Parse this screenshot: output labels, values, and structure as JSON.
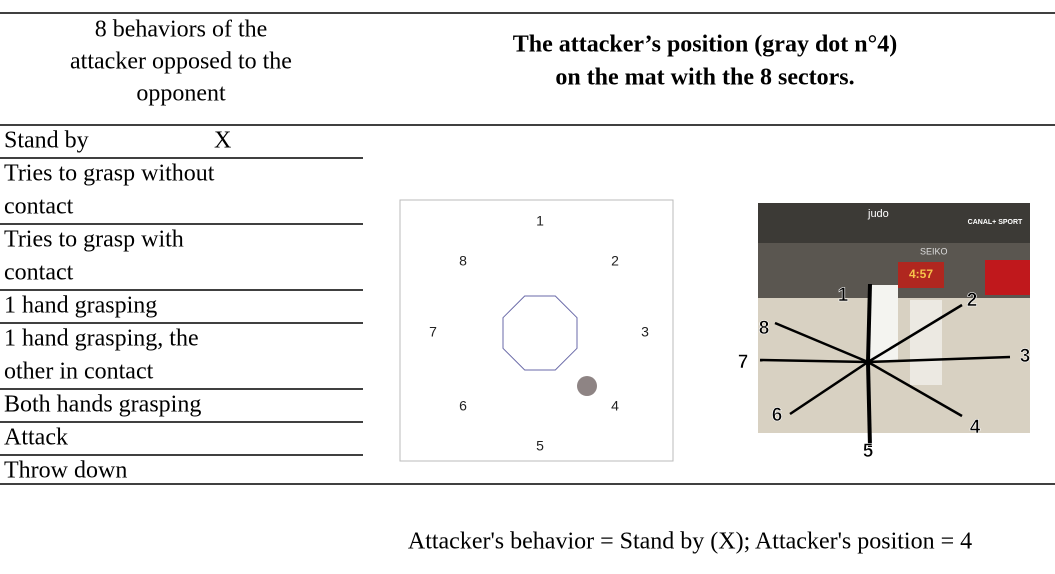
{
  "header": {
    "left": [
      "8 behaviors of the",
      "attacker opposed to the",
      "opponent"
    ],
    "right": [
      "The attacker’s position (gray dot n°4)",
      "on the mat with the 8 sectors."
    ]
  },
  "behaviors": [
    {
      "lines": [
        "Stand by"
      ],
      "mark": "X"
    },
    {
      "lines": [
        "Tries to grasp without",
        "contact"
      ]
    },
    {
      "lines": [
        "Tries to grasp with",
        "contact"
      ]
    },
    {
      "lines": [
        "1 hand grasping"
      ]
    },
    {
      "lines": [
        "1 hand grasping, the",
        "other in contact"
      ]
    },
    {
      "lines": [
        "Both hands grasping"
      ]
    },
    {
      "lines": [
        "Attack"
      ]
    },
    {
      "lines": [
        "Throw down"
      ]
    }
  ],
  "mat_diagram": {
    "sectors": [
      "1",
      "2",
      "3",
      "4",
      "5",
      "6",
      "7",
      "8"
    ]
  },
  "photo": {
    "sectors": [
      "1",
      "2",
      "3",
      "4",
      "5",
      "6",
      "7",
      "8"
    ],
    "overlays": [
      "judo",
      "SEIKO",
      "CANAL+ SPORT",
      "4:57"
    ]
  },
  "caption": "Attacker's behavior = Stand by (X); Attacker's position = 4"
}
